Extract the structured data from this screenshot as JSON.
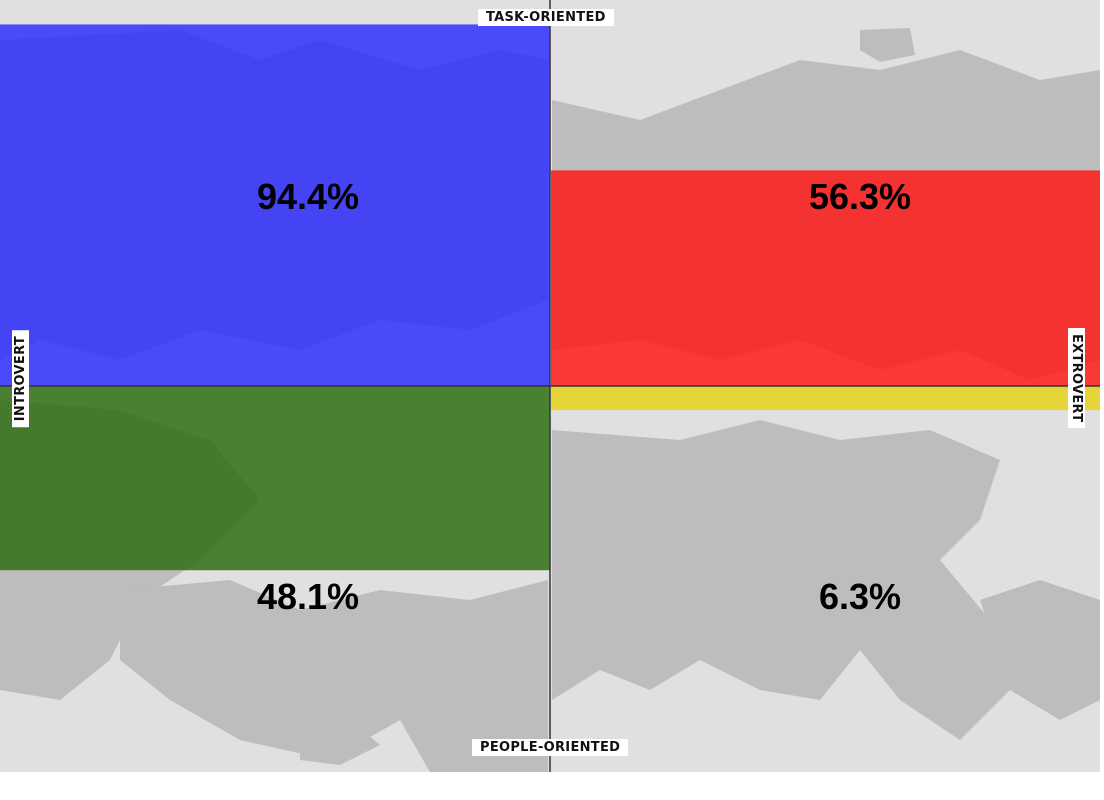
{
  "chart_data": {
    "type": "quadrant-bar",
    "axes": {
      "top": "TASK-ORIENTED",
      "bottom": "PEOPLE-ORIENTED",
      "left": "INTROVERT",
      "right": "EXTROVERT"
    },
    "quadrants": [
      {
        "position": "top-left",
        "value": 94.4,
        "label": "94.4%",
        "color": "#2f2fff"
      },
      {
        "position": "top-right",
        "value": 56.3,
        "label": "56.3%",
        "color": "#ff1a1a"
      },
      {
        "position": "bottom-left",
        "value": 48.1,
        "label": "48.1%",
        "color": "#2e6e12"
      },
      {
        "position": "bottom-right",
        "value": 6.3,
        "label": "6.3%",
        "color": "#e6d21a"
      }
    ],
    "range": [
      0,
      100
    ],
    "background_color": "#e0e0e0",
    "land_color": "#bdbdbd"
  }
}
